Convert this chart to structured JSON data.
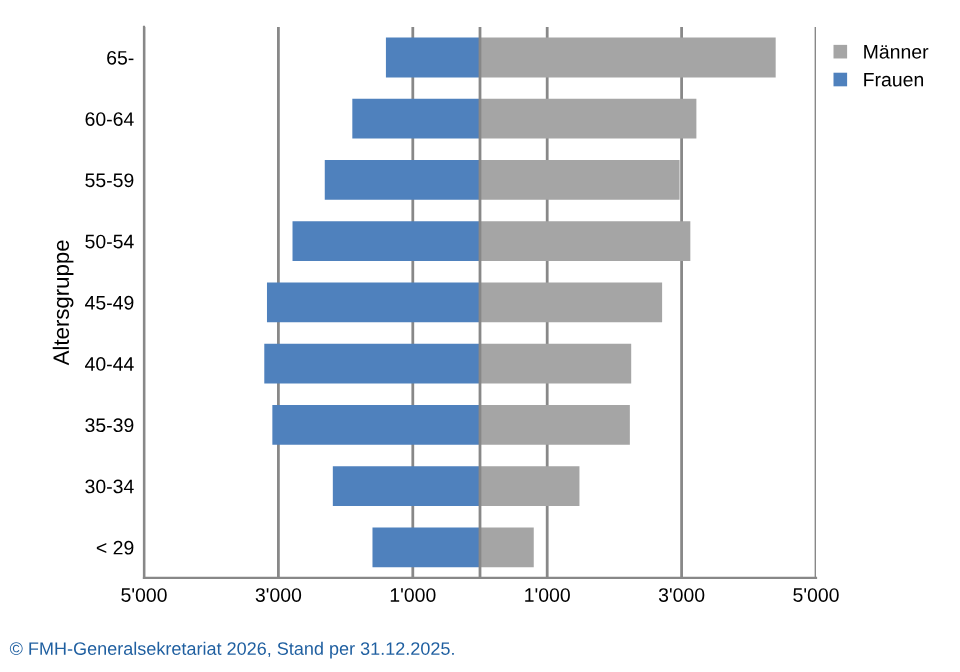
{
  "chart_data": {
    "type": "bar",
    "orientation": "horizontal",
    "ylabel": "Altersgruppe",
    "categories": [
      "65-",
      "60-64",
      "55-59",
      "50-54",
      "45-49",
      "40-44",
      "35-39",
      "30-34",
      "< 29"
    ],
    "series": [
      {
        "name": "Männer",
        "color": "#a5a5a5",
        "values": [
          4400,
          3220,
          2970,
          3130,
          2710,
          2250,
          2230,
          1480,
          800
        ]
      },
      {
        "name": "Frauen",
        "color": "#4f81bd",
        "values": [
          -1400,
          -1900,
          -2310,
          -2790,
          -3170,
          -3210,
          -3090,
          -2190,
          -1600
        ]
      }
    ],
    "xlim": [
      -5000,
      5000
    ],
    "xticks": [
      {
        "value": -5000,
        "label": "5'000"
      },
      {
        "value": -3000,
        "label": "3'000"
      },
      {
        "value": -1000,
        "label": "1'000"
      },
      {
        "value": 1000,
        "label": "1'000"
      },
      {
        "value": 3000,
        "label": "3'000"
      },
      {
        "value": 5000,
        "label": "5'000"
      }
    ],
    "stacked": true,
    "grid": "x",
    "legend": "top right",
    "annotations": [
      "© FMH-Generalsekretariat 2026, Stand per 31.12.2025."
    ]
  }
}
